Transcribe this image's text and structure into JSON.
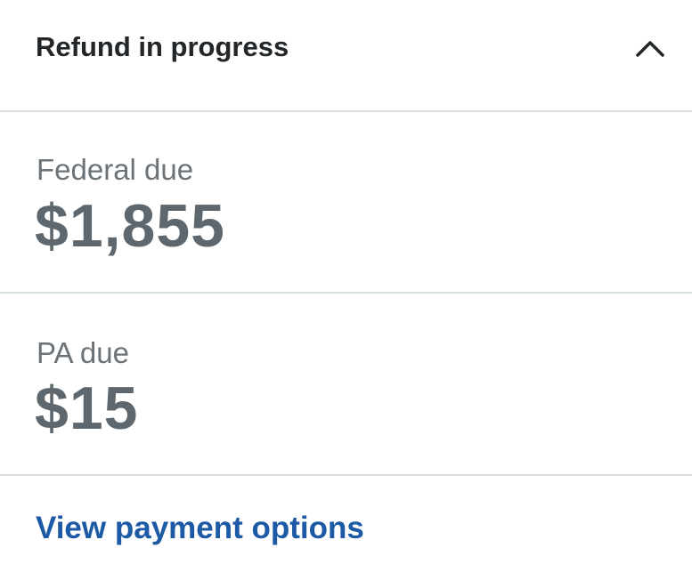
{
  "header": {
    "title": "Refund in progress",
    "toggle_icon": "chevron-up-icon"
  },
  "items": [
    {
      "label": "Federal due",
      "amount": "$1,855"
    },
    {
      "label": "PA due",
      "amount": "$15"
    }
  ],
  "footer": {
    "link_label": "View payment options"
  },
  "colors": {
    "link": "#1c5aa5",
    "amount": "#5d676d",
    "divider": "#d6dee2"
  }
}
